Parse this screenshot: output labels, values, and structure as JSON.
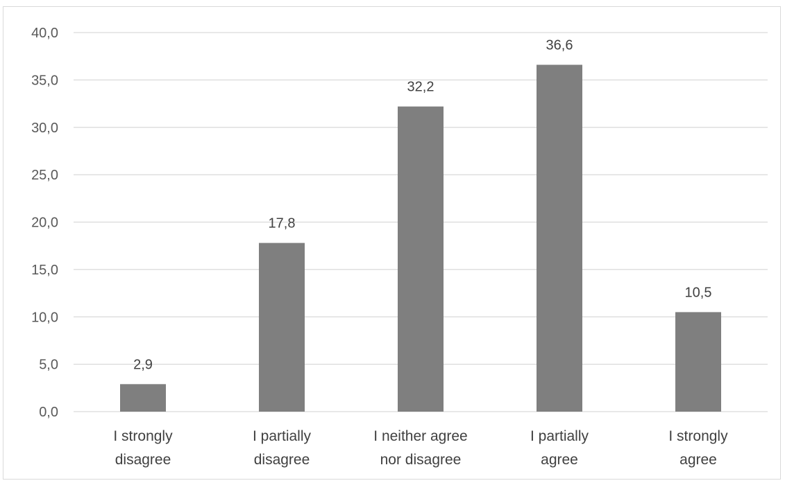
{
  "chart_data": {
    "type": "bar",
    "categories": [
      [
        "I strongly",
        "disagree"
      ],
      [
        "I partially",
        "disagree"
      ],
      [
        "I neither agree",
        "nor disagree"
      ],
      [
        "I partially",
        "agree"
      ],
      [
        "I strongly",
        "agree"
      ]
    ],
    "values": [
      2.9,
      17.8,
      32.2,
      36.6,
      10.5
    ],
    "data_labels": [
      "2,9",
      "17,8",
      "32,2",
      "36,6",
      "10,5"
    ],
    "y_ticks": [
      "0,0",
      "5,0",
      "10,0",
      "15,0",
      "20,0",
      "25,0",
      "30,0",
      "35,0",
      "40,0"
    ],
    "ylim": [
      0,
      40
    ],
    "y_step": 5,
    "grid": true,
    "legend": "none",
    "title": "",
    "xlabel": "",
    "ylabel": "",
    "colors": {
      "bar": "#7f7f7f",
      "grid": "#d9d9d9",
      "tick_text": "#595959",
      "label_text": "#404040"
    }
  }
}
